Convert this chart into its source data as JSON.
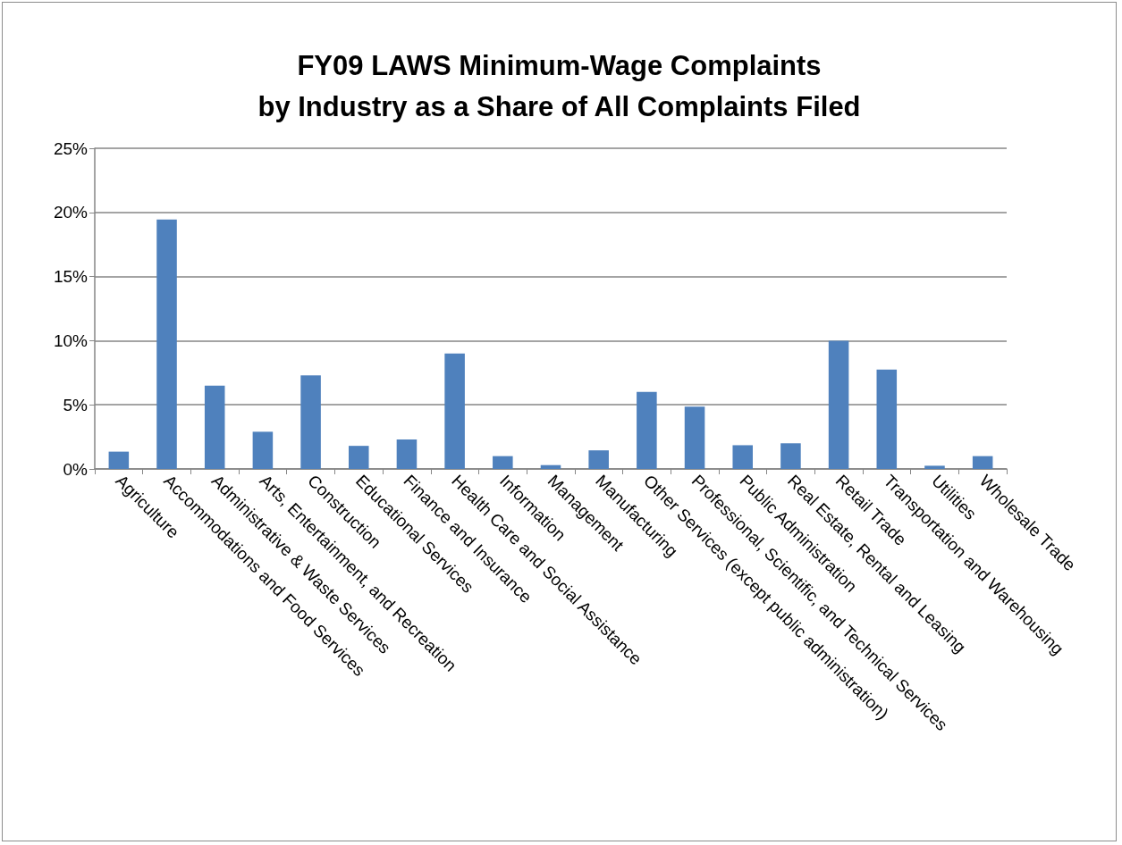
{
  "chart_data": {
    "type": "bar",
    "title": "FY09 LAWS Minimum-Wage Complaints\nby Industry as a Share of All Complaints Filed",
    "categories": [
      "Agriculture",
      "Accommodations and Food Services",
      "Administrative & Waste Services",
      "Arts, Entertainment, and Recreation",
      "Construction",
      "Educational Services",
      "Finance and Insurance",
      "Health Care and Social Assistance",
      "Information",
      "Management",
      "Manufacturing",
      "Other Services (except public administration)",
      "Professional, Scientific, and Technical Services",
      "Public Administration",
      "Real Estate, Rental and Leasing",
      "Retail Trade",
      "Transportation and Warehousing",
      "Utilities",
      "Wholesale Trade"
    ],
    "values": [
      1.35,
      19.45,
      6.5,
      2.9,
      7.3,
      1.8,
      2.3,
      9.0,
      1.0,
      0.3,
      1.45,
      6.0,
      4.85,
      1.85,
      2.0,
      10.0,
      7.75,
      0.25,
      1.0
    ],
    "color": "#4f81bd",
    "ylim": [
      0,
      25
    ],
    "yticks": [
      {
        "value": 0,
        "label": "0%"
      },
      {
        "value": 5,
        "label": "5%"
      },
      {
        "value": 10,
        "label": "10%"
      },
      {
        "value": 15,
        "label": "15%"
      },
      {
        "value": 20,
        "label": "20%"
      },
      {
        "value": 25,
        "label": "25%"
      }
    ],
    "grid": "y"
  }
}
